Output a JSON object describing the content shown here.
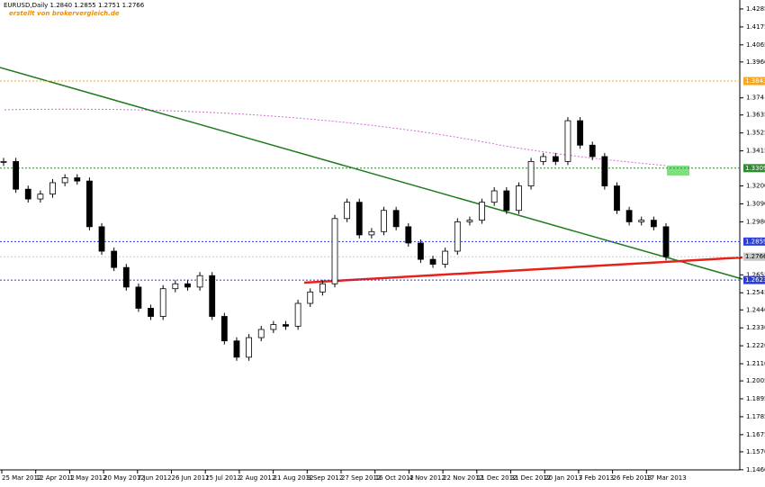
{
  "chart_data": {
    "type": "candlestick",
    "header": "EURUSD,Daily 1.2840 1.2855 1.2751 1.2766",
    "watermark": "erstellt von brokervergleich.de",
    "xlabels": [
      "25 Mar 2012",
      "12 Apr 2012",
      "1 May 2012",
      "20 May 2012",
      "7 Jun 2012",
      "26 Jun 2012",
      "15 Jul 2012",
      "2 Aug 2012",
      "21 Aug 2012",
      "9 Sep 2012",
      "27 Sep 2012",
      "16 Oct 2012",
      "4 Nov 2012",
      "22 Nov 2012",
      "11 Dec 2012",
      "31 Dec 2012",
      "20 Jan 2013",
      "7 Feb 2013",
      "26 Feb 2013",
      "17 Mar 2013"
    ],
    "values": [
      1.335,
      1.318,
      1.312,
      1.315,
      1.322,
      1.325,
      1.323,
      1.295,
      1.28,
      1.27,
      1.258,
      1.245,
      1.24,
      1.257,
      1.26,
      1.258,
      1.265,
      1.24,
      1.225,
      1.215,
      1.227,
      1.232,
      1.235,
      1.234,
      1.248,
      1.255,
      1.26,
      1.3,
      1.31,
      1.29,
      1.292,
      1.305,
      1.295,
      1.285,
      1.275,
      1.272,
      1.28,
      1.298,
      1.299,
      1.31,
      1.317,
      1.305,
      1.32,
      1.335,
      1.338,
      1.335,
      1.36,
      1.345,
      1.338,
      1.32,
      1.305,
      1.298,
      1.299,
      1.295,
      1.2766
    ],
    "ylim": [
      1.1437,
      1.434
    ],
    "yticks": [
      1.4285,
      1.4175,
      1.4065,
      {
        "value": 1.396,
        "label": "1.3960"
      },
      1.374,
      1.3635,
      1.3525,
      1.3415,
      {
        "value": 1.32,
        "label": "1.3200"
      },
      {
        "value": 1.309,
        "label": "1.3090"
      },
      {
        "value": 1.298,
        "label": "1.2980"
      },
      1.2655,
      1.2545,
      {
        "value": 1.244,
        "label": "1.2440"
      },
      {
        "value": 1.233,
        "label": "1.2330"
      },
      {
        "value": 1.222,
        "label": "1.2220"
      },
      {
        "value": 1.211,
        "label": "1.2110"
      },
      1.2005,
      1.1895,
      1.1785,
      1.1675,
      {
        "value": 1.157,
        "label": "1.1570"
      },
      {
        "value": 1.146,
        "label": "1.1460"
      }
    ],
    "price_lines": [
      {
        "value": 1.3843,
        "color": "#f5a623"
      },
      {
        "value": 1.3309,
        "color": "#2e8b2e"
      },
      {
        "value": 1.2859,
        "color": "#2b3fd8"
      },
      {
        "value": 1.2766,
        "color": "#c8c8c8"
      },
      {
        "value": 1.2623,
        "color": "#2b3fd8"
      }
    ]
  }
}
